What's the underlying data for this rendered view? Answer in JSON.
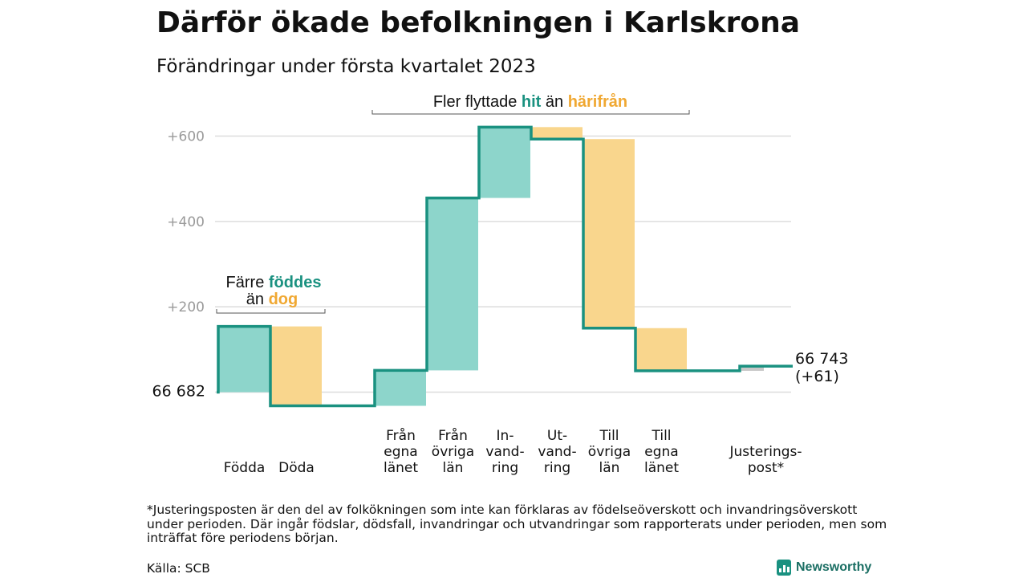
{
  "title": "Därför ökade befolkningen i Karlskrona",
  "subtitle": "Förändringar under första kvartalet 2023",
  "footnote": "*Justeringsposten är den del av folkökningen som inte kan förklaras av födelseöverskott och invandringsöverskott under perioden. Där ingår födslar, dödsfall, invandringar och utvandringar som rapporterats under perioden, men som inträffat före periodens början.",
  "source": "Källa: SCB",
  "brand": "Newsworthy",
  "colors": {
    "increase": "#8dd5cb",
    "decrease": "#f9d68d",
    "adjustment": "#c8c8c8",
    "line": "#1a9180",
    "grid": "#dddddd",
    "tick": "#9a9a9a",
    "accent_green": "#1a9180",
    "accent_orange": "#f0a832"
  },
  "chart_data": {
    "type": "waterfall",
    "start_label": "66 682",
    "end_label_lines": [
      "66 743",
      "(+61)"
    ],
    "start_value": 66682,
    "end_value": 66743,
    "y_ticks": [
      {
        "value": 200,
        "label": "+200"
      },
      {
        "value": 400,
        "label": "+400"
      },
      {
        "value": 600,
        "label": "+600"
      }
    ],
    "ylim": [
      -50,
      650
    ],
    "steps": [
      {
        "label_lines": [
          "Födda"
        ],
        "from": 0,
        "to": 154,
        "kind": "increase"
      },
      {
        "label_lines": [
          "Döda"
        ],
        "from": 154,
        "to": -32,
        "kind": "decrease"
      },
      {
        "label_lines": [],
        "from": -32,
        "to": -32,
        "kind": "gap"
      },
      {
        "label_lines": [
          "Från",
          "egna",
          "länet"
        ],
        "from": -32,
        "to": 51,
        "kind": "increase"
      },
      {
        "label_lines": [
          "Från",
          "övriga",
          "län"
        ],
        "from": 51,
        "to": 455,
        "kind": "increase"
      },
      {
        "label_lines": [
          "In-",
          "vand-",
          "ring"
        ],
        "from": 455,
        "to": 621,
        "kind": "increase"
      },
      {
        "label_lines": [
          "Ut-",
          "vand-",
          "ring"
        ],
        "from": 621,
        "to": 593,
        "kind": "decrease"
      },
      {
        "label_lines": [
          "Till",
          "övriga",
          "län"
        ],
        "from": 593,
        "to": 150,
        "kind": "decrease"
      },
      {
        "label_lines": [
          "Till",
          "egna",
          "länet"
        ],
        "from": 150,
        "to": 50,
        "kind": "decrease"
      },
      {
        "label_lines": [],
        "from": 50,
        "to": 50,
        "kind": "gap"
      },
      {
        "label_lines": [
          "Justerings-",
          "post*"
        ],
        "from": 50,
        "to": 61,
        "kind": "adjustment"
      }
    ],
    "annotations": [
      {
        "group": "births_deaths",
        "line1": {
          "prefix": "Färre ",
          "highlight": "föddes",
          "color": "accent_green"
        },
        "line2": {
          "prefix": "än ",
          "highlight": "dog",
          "color": "accent_orange"
        }
      },
      {
        "group": "migration",
        "parts": [
          {
            "text": "Fler flyttade ",
            "color": null
          },
          {
            "text": "hit",
            "color": "accent_green"
          },
          {
            "text": " än ",
            "color": null
          },
          {
            "text": "härifrån",
            "color": "accent_orange"
          }
        ]
      }
    ]
  }
}
